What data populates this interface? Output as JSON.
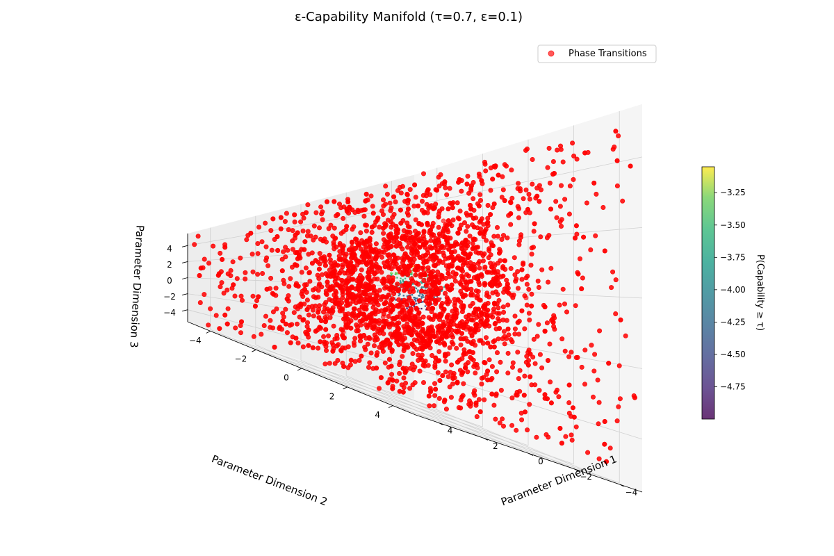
{
  "chart_data": {
    "type": "scatter",
    "projection": "3d",
    "title": "ε-Capability Manifold (τ=0.7, ε=0.1)",
    "xlabel": "Parameter Dimension 1",
    "ylabel": "Parameter Dimension 2",
    "zlabel": "Parameter Dimension 3",
    "xlim": [
      -5,
      5
    ],
    "ylim": [
      -5,
      5
    ],
    "zlim": [
      -5.5,
      5.5
    ],
    "xticks": [
      -4,
      -2,
      0,
      2,
      4
    ],
    "yticks": [
      -4,
      -2,
      0,
      2,
      4
    ],
    "zticks": [
      -4,
      -2,
      0,
      2,
      4
    ],
    "xtick_labels": [
      "−4",
      "−2",
      "0",
      "2",
      "4"
    ],
    "ytick_labels": [
      "−4",
      "−2",
      "0",
      "2",
      "4"
    ],
    "ztick_labels": [
      "−4",
      "−2",
      "0",
      "2",
      "4"
    ],
    "grid": true,
    "legend": {
      "position": "top-right",
      "entries": [
        {
          "name": "Phase Transitions",
          "color": "#ff0000",
          "alpha": 0.65
        }
      ]
    },
    "colorbar": {
      "label": "P(Capability ≥ τ)",
      "colormap": "viridis",
      "range": [
        -5.0,
        -3.05
      ],
      "ticks": [
        -3.25,
        -3.5,
        -3.75,
        -4.0,
        -4.25,
        -4.5,
        -4.75
      ],
      "tick_labels": [
        "−3.25",
        "−3.50",
        "−3.75",
        "−4.00",
        "−4.25",
        "−4.50",
        "−4.75"
      ]
    },
    "series": [
      {
        "name": "Phase Transitions",
        "color": "#ff0000",
        "marker": "circle",
        "distribution": "points distributed throughout the cube, densest in a spherical shell near the center",
        "x_range": [
          -5,
          5
        ],
        "y_range": [
          -5,
          5
        ],
        "z_range": [
          -5,
          5
        ]
      },
      {
        "name": "",
        "color_by": "P(Capability ≥ τ)",
        "distribution": "small isosurface near the origin",
        "x_range": [
          -1,
          1
        ],
        "y_range": [
          -1,
          1
        ],
        "z_range": [
          -1,
          1
        ]
      }
    ]
  }
}
